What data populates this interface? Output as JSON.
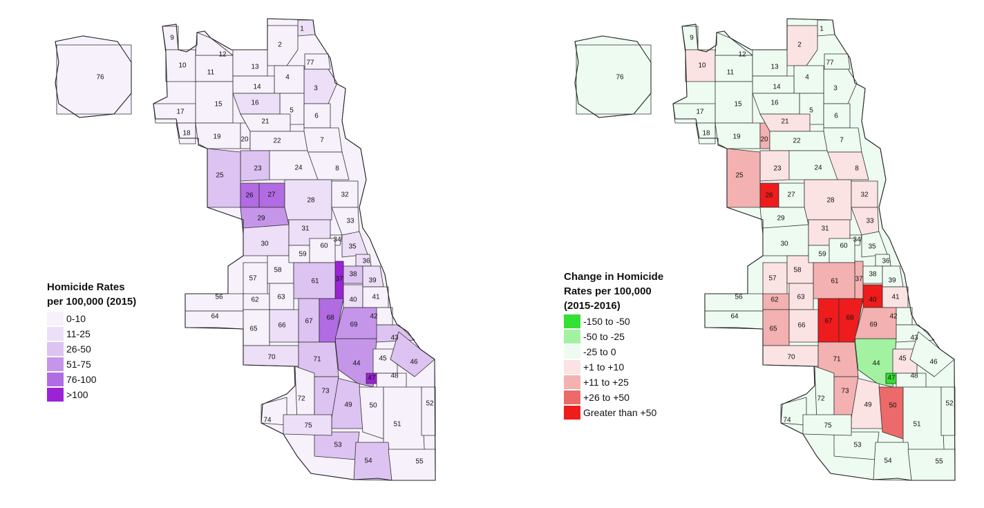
{
  "maps": [
    {
      "id": "rates-2015",
      "legend": {
        "title_line1": "Homicide Rates",
        "title_line2": "per 100,000 (2015)",
        "title_line3": "",
        "bins": [
          {
            "label": "0-10",
            "color": "#f7f1fc"
          },
          {
            "label": "11-25",
            "color": "#ecdff7"
          },
          {
            "label": "26-50",
            "color": "#dcc3f1"
          },
          {
            "label": "51-75",
            "color": "#c595ea"
          },
          {
            "label": "76-100",
            "color": "#b16be3"
          },
          {
            "label": ">100",
            "color": "#9b22d6"
          }
        ]
      },
      "area_bins": {
        "1": 1,
        "2": 0,
        "3": 1,
        "4": 0,
        "5": 0,
        "6": 0,
        "7": 0,
        "8": 0,
        "9": 0,
        "10": 0,
        "11": 0,
        "12": 0,
        "13": 0,
        "14": 0,
        "15": 0,
        "16": 1,
        "17": 0,
        "18": 0,
        "19": 0,
        "20": 0,
        "21": 0,
        "22": 0,
        "23": 2,
        "24": 0,
        "25": 2,
        "26": 4,
        "27": 4,
        "28": 1,
        "29": 3,
        "30": 1,
        "31": 1,
        "32": 0,
        "33": 0,
        "34": 0,
        "35": 1,
        "36": 1,
        "37": 5,
        "38": 2,
        "39": 1,
        "40": 1,
        "41": 0,
        "42": 0,
        "43": 2,
        "44": 3,
        "45": 0,
        "46": 2,
        "47": 5,
        "48": 0,
        "49": 2,
        "50": 0,
        "51": 0,
        "52": 0,
        "53": 2,
        "54": 2,
        "55": 0,
        "56": 0,
        "57": 0,
        "58": 0,
        "59": 0,
        "60": 0,
        "61": 2,
        "62": 0,
        "63": 0,
        "64": 0,
        "65": 0,
        "66": 1,
        "67": 2,
        "68": 4,
        "69": 3,
        "70": 1,
        "71": 2,
        "72": 0,
        "73": 2,
        "74": 0,
        "75": 1,
        "76": 0,
        "77": 0
      }
    },
    {
      "id": "change-2015-2016",
      "legend": {
        "title_line1": "Change in Homicide",
        "title_line2": "Rates per 100,000",
        "title_line3": "(2015-2016)",
        "bins": [
          {
            "label": "-150 to -50",
            "color": "#33e033"
          },
          {
            "label": "-50 to -25",
            "color": "#a2f2a2"
          },
          {
            "label": "-25 to 0",
            "color": "#eefbf1"
          },
          {
            "label": "+1 to +10",
            "color": "#fbe3e3"
          },
          {
            "label": "+11 to +25",
            "color": "#f4b1b1"
          },
          {
            "label": "+26 to +50",
            "color": "#ec6a6a"
          },
          {
            "label": "Greater than +50",
            "color": "#ee1c1c"
          }
        ]
      },
      "area_bins": {
        "1": 2,
        "2": 3,
        "3": 2,
        "4": 2,
        "5": 2,
        "6": 2,
        "7": 2,
        "8": 3,
        "9": 2,
        "10": 3,
        "11": 2,
        "12": 2,
        "13": 2,
        "14": 2,
        "15": 2,
        "16": 2,
        "17": 2,
        "18": 2,
        "19": 2,
        "20": 4,
        "21": 3,
        "22": 2,
        "23": 3,
        "24": 2,
        "25": 4,
        "26": 6,
        "27": 2,
        "28": 3,
        "29": 2,
        "30": 2,
        "31": 3,
        "32": 3,
        "33": 3,
        "34": 2,
        "35": 2,
        "36": 2,
        "37": 4,
        "38": 2,
        "39": 2,
        "40": 6,
        "41": 3,
        "42": 2,
        "43": 2,
        "44": 1,
        "45": 3,
        "46": 2,
        "47": 0,
        "48": 2,
        "49": 3,
        "50": 5,
        "51": 2,
        "52": 2,
        "53": 2,
        "54": 2,
        "55": 2,
        "56": 2,
        "57": 3,
        "58": 3,
        "59": 2,
        "60": 2,
        "61": 4,
        "62": 4,
        "63": 3,
        "64": 2,
        "65": 4,
        "66": 3,
        "67": 6,
        "68": 6,
        "69": 4,
        "70": 3,
        "71": 4,
        "72": 2,
        "73": 4,
        "74": 2,
        "75": 2,
        "76": 2,
        "77": 2
      }
    }
  ],
  "community_area_labels": [
    "1",
    "2",
    "3",
    "4",
    "5",
    "6",
    "7",
    "8",
    "9",
    "10",
    "11",
    "12",
    "13",
    "14",
    "15",
    "16",
    "17",
    "18",
    "19",
    "20",
    "21",
    "22",
    "23",
    "24",
    "25",
    "26",
    "27",
    "28",
    "29",
    "30",
    "31",
    "32",
    "33",
    "34",
    "35",
    "36",
    "37",
    "38",
    "39",
    "40",
    "41",
    "42",
    "43",
    "44",
    "45",
    "46",
    "47",
    "48",
    "49",
    "50",
    "51",
    "52",
    "53",
    "54",
    "55",
    "56",
    "57",
    "58",
    "59",
    "60",
    "61",
    "62",
    "63",
    "64",
    "65",
    "66",
    "67",
    "68",
    "69",
    "70",
    "71",
    "72",
    "73",
    "74",
    "75",
    "76",
    "77"
  ]
}
